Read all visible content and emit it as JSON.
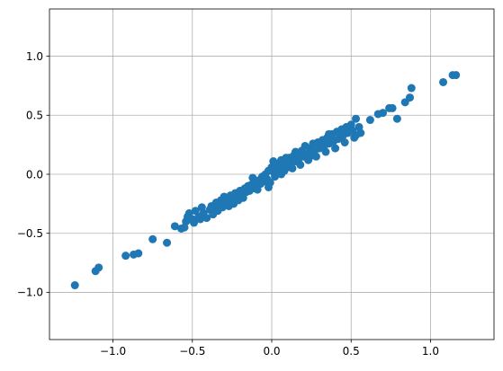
{
  "chart_data": {
    "type": "scatter",
    "title": "",
    "xlabel": "",
    "ylabel": "",
    "xlim": [
      -1.4,
      1.4
    ],
    "ylim": [
      -1.4,
      1.4
    ],
    "xticks": [
      -1.0,
      -0.5,
      0.0,
      0.5,
      1.0
    ],
    "yticks": [
      -1.0,
      -0.5,
      0.0,
      0.5,
      1.0
    ],
    "xtick_labels": [
      "−1.0",
      "−0.5",
      "0.0",
      "0.5",
      "1.0"
    ],
    "ytick_labels": [
      "−1.0",
      "−0.5",
      "0.0",
      "0.5",
      "1.0"
    ],
    "grid": true,
    "marker_color": "#1f77b4",
    "series": [
      {
        "points": [
          [
            -1.24,
            -0.94
          ],
          [
            -1.11,
            -0.82
          ],
          [
            -1.09,
            -0.79
          ],
          [
            -0.92,
            -0.69
          ],
          [
            -0.87,
            -0.68
          ],
          [
            -0.84,
            -0.67
          ],
          [
            -0.75,
            -0.55
          ],
          [
            -0.66,
            -0.58
          ],
          [
            -0.61,
            -0.44
          ],
          [
            -0.57,
            -0.46
          ],
          [
            -0.55,
            -0.45
          ],
          [
            -0.54,
            -0.4
          ],
          [
            -0.53,
            -0.36
          ],
          [
            -0.52,
            -0.33
          ],
          [
            -0.5,
            -0.38
          ],
          [
            -0.49,
            -0.41
          ],
          [
            -0.48,
            -0.31
          ],
          [
            -0.46,
            -0.36
          ],
          [
            -0.45,
            -0.38
          ],
          [
            -0.43,
            -0.33
          ],
          [
            -0.41,
            -0.37
          ],
          [
            -0.39,
            -0.3
          ],
          [
            -0.38,
            -0.27
          ],
          [
            -0.37,
            -0.34
          ],
          [
            -0.36,
            -0.29
          ],
          [
            -0.35,
            -0.24
          ],
          [
            -0.34,
            -0.31
          ],
          [
            -0.33,
            -0.26
          ],
          [
            -0.32,
            -0.22
          ],
          [
            -0.31,
            -0.28
          ],
          [
            -0.3,
            -0.25
          ],
          [
            -0.29,
            -0.2
          ],
          [
            -0.28,
            -0.23
          ],
          [
            -0.27,
            -0.27
          ],
          [
            -0.26,
            -0.18
          ],
          [
            -0.25,
            -0.21
          ],
          [
            -0.24,
            -0.25
          ],
          [
            -0.23,
            -0.16
          ],
          [
            -0.22,
            -0.19
          ],
          [
            -0.21,
            -0.22
          ],
          [
            -0.2,
            -0.14
          ],
          [
            -0.19,
            -0.17
          ],
          [
            -0.18,
            -0.2
          ],
          [
            -0.17,
            -0.12
          ],
          [
            -0.16,
            -0.15
          ],
          [
            -0.15,
            -0.1
          ],
          [
            -0.14,
            -0.14
          ],
          [
            -0.13,
            -0.09
          ],
          [
            -0.12,
            -0.12
          ],
          [
            -0.11,
            -0.06
          ],
          [
            -0.1,
            -0.09
          ],
          [
            -0.09,
            -0.13
          ],
          [
            -0.08,
            -0.05
          ],
          [
            -0.07,
            -0.08
          ],
          [
            -0.06,
            -0.02
          ],
          [
            -0.05,
            -0.06
          ],
          [
            -0.04,
            0.0
          ],
          [
            -0.03,
            -0.04
          ],
          [
            -0.02,
            -0.11
          ],
          [
            -0.01,
            -0.07
          ],
          [
            0.0,
            0.06
          ],
          [
            0.01,
            0.02
          ],
          [
            0.02,
            -0.02
          ],
          [
            0.03,
            0.09
          ],
          [
            0.04,
            0.05
          ],
          [
            0.05,
            0.01
          ],
          [
            0.06,
            0.12
          ],
          [
            0.07,
            0.08
          ],
          [
            0.08,
            0.03
          ],
          [
            0.09,
            0.1
          ],
          [
            0.1,
            0.06
          ],
          [
            0.11,
            0.14
          ],
          [
            0.12,
            0.09
          ],
          [
            0.13,
            0.05
          ],
          [
            0.14,
            0.16
          ],
          [
            0.15,
            0.11
          ],
          [
            0.16,
            0.18
          ],
          [
            0.17,
            0.13
          ],
          [
            0.18,
            0.08
          ],
          [
            0.19,
            0.2
          ],
          [
            0.2,
            0.15
          ],
          [
            0.21,
            0.24
          ],
          [
            0.22,
            0.17
          ],
          [
            0.23,
            0.12
          ],
          [
            0.24,
            0.22
          ],
          [
            0.25,
            0.18
          ],
          [
            0.26,
            0.26
          ],
          [
            0.27,
            0.2
          ],
          [
            0.28,
            0.15
          ],
          [
            0.29,
            0.27
          ],
          [
            0.3,
            0.22
          ],
          [
            0.32,
            0.29
          ],
          [
            0.33,
            0.24
          ],
          [
            0.34,
            0.19
          ],
          [
            0.35,
            0.31
          ],
          [
            0.36,
            0.26
          ],
          [
            0.38,
            0.34
          ],
          [
            0.39,
            0.28
          ],
          [
            0.4,
            0.22
          ],
          [
            0.41,
            0.36
          ],
          [
            0.42,
            0.3
          ],
          [
            0.44,
            0.38
          ],
          [
            0.45,
            0.33
          ],
          [
            0.46,
            0.27
          ],
          [
            0.47,
            0.4
          ],
          [
            0.48,
            0.35
          ],
          [
            0.5,
            0.42
          ],
          [
            0.51,
            0.37
          ],
          [
            0.52,
            0.31
          ],
          [
            0.53,
            0.47
          ],
          [
            0.55,
            0.4
          ],
          [
            0.56,
            0.35
          ],
          [
            0.62,
            0.46
          ],
          [
            0.67,
            0.51
          ],
          [
            0.7,
            0.52
          ],
          [
            0.74,
            0.56
          ],
          [
            0.76,
            0.56
          ],
          [
            0.79,
            0.47
          ],
          [
            0.84,
            0.61
          ],
          [
            0.87,
            0.65
          ],
          [
            0.88,
            0.73
          ],
          [
            1.08,
            0.78
          ],
          [
            1.14,
            0.84
          ],
          [
            1.16,
            0.84
          ],
          [
            -0.12,
            -0.03
          ],
          [
            0.01,
            0.11
          ],
          [
            -0.02,
            0.03
          ],
          [
            0.06,
            0.0
          ],
          [
            0.15,
            0.19
          ],
          [
            0.24,
            0.15
          ],
          [
            0.36,
            0.34
          ],
          [
            -0.44,
            -0.28
          ],
          [
            -0.3,
            -0.19
          ],
          [
            0.19,
            0.17
          ],
          [
            0.46,
            0.37
          ],
          [
            0.53,
            0.33
          ],
          [
            0.09,
            0.14
          ]
        ]
      }
    ]
  }
}
